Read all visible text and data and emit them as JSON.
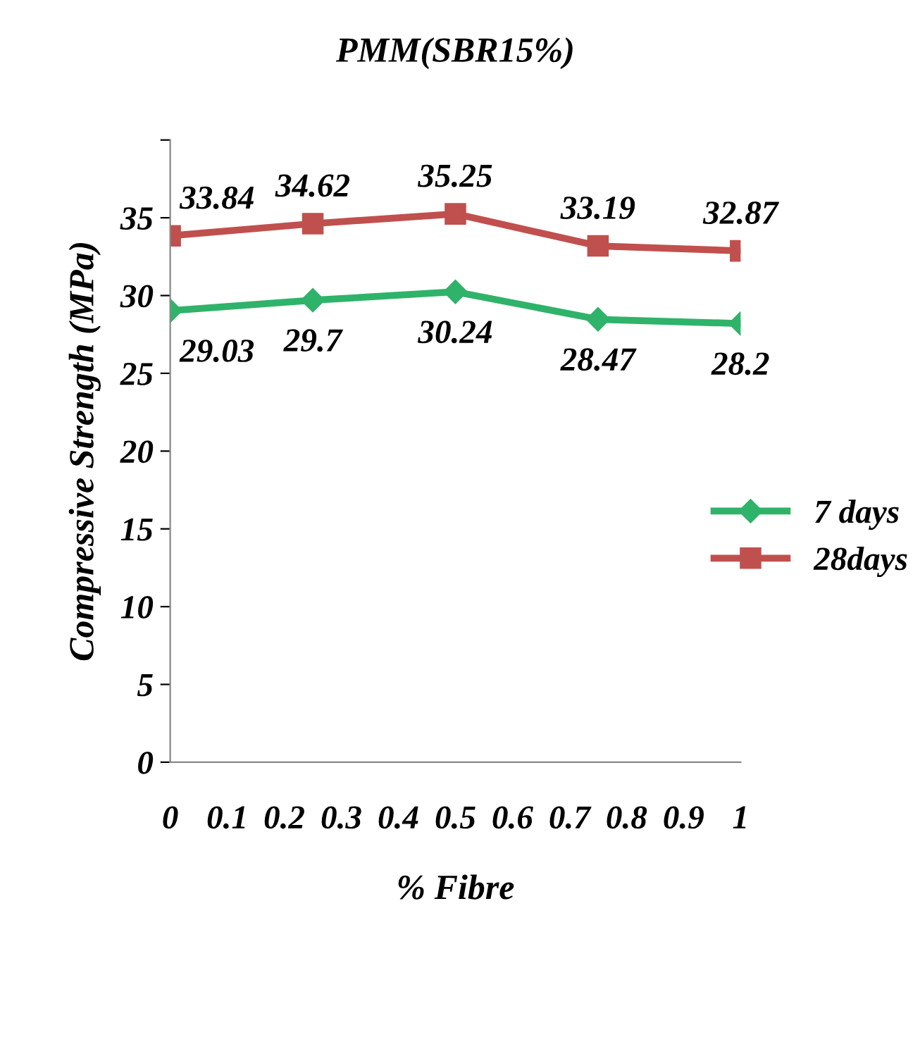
{
  "chart_data": {
    "type": "line",
    "title": "PMM(SBR15%)",
    "xlabel": "% Fibre",
    "ylabel": "Compressive Strength (MPa)",
    "x": [
      0,
      0.25,
      0.5,
      0.75,
      1
    ],
    "series": [
      {
        "name": "7 days",
        "color": "#2fb36a",
        "marker": "diamond",
        "values": [
          29.03,
          29.7,
          30.24,
          28.47,
          28.2
        ]
      },
      {
        "name": "28days",
        "color": "#c0504d",
        "marker": "square",
        "values": [
          33.84,
          34.62,
          35.25,
          33.19,
          32.87
        ]
      }
    ],
    "xlim": [
      0,
      1
    ],
    "xticks": [
      0,
      0.1,
      0.2,
      0.3,
      0.4,
      0.5,
      0.6,
      0.7,
      0.8,
      0.9,
      1
    ],
    "ylim": [
      0,
      40
    ],
    "yticks": [
      0,
      5,
      10,
      15,
      20,
      25,
      30,
      35,
      {
        "value": 40,
        "label": null
      }
    ],
    "data_labels": true,
    "legend": "right",
    "grid": false,
    "line_style": "solid"
  }
}
